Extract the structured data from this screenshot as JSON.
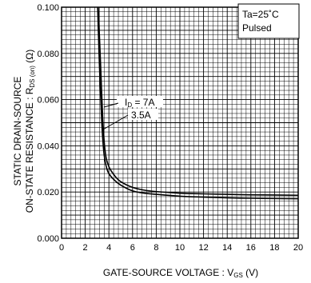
{
  "chart_data": {
    "type": "line",
    "xlabel": "GATE-SOURCE  VOLTAGE : V",
    "xlabel_sub": "GS",
    "xlabel_unit": " (V)",
    "ylabel_line1": "STATIC  DRAIN-SOURCE",
    "ylabel_line2": "ON-STATE  RESISTANCE : R",
    "ylabel_sub": "DS (on)",
    "ylabel_unit": " (Ω)",
    "xlim": [
      0,
      20
    ],
    "ylim": [
      0,
      0.1
    ],
    "xticks": [
      0,
      2,
      4,
      6,
      8,
      10,
      12,
      14,
      16,
      18,
      20
    ],
    "xtick_labels": [
      "0",
      "2",
      "4",
      "6",
      "8",
      "10",
      "12",
      "14",
      "16",
      "18",
      "20"
    ],
    "yticks": [
      0,
      0.02,
      0.04,
      0.06,
      0.08,
      0.1
    ],
    "ytick_labels": [
      "0.000",
      "0.020",
      "0.040",
      "0.060",
      "0.080",
      "0.100"
    ],
    "grid": true,
    "conditions": [
      "Ta=25˚C",
      "Pulsed"
    ],
    "series": [
      {
        "name_prefix": "I",
        "name_sub": "D",
        "name_value": " = 7A",
        "x": [
          3.1,
          3.3,
          3.5,
          3.7,
          4.0,
          4.5,
          5.0,
          6.0,
          7.0,
          8.0,
          10.0,
          12.0,
          14.0,
          16.0,
          18.0,
          20.0
        ],
        "y": [
          0.1,
          0.075,
          0.05,
          0.037,
          0.031,
          0.027,
          0.0245,
          0.022,
          0.0208,
          0.0202,
          0.0195,
          0.0192,
          0.019,
          0.0188,
          0.0187,
          0.0186
        ]
      },
      {
        "name": "3.5A",
        "x": [
          3.05,
          3.2,
          3.4,
          3.6,
          3.9,
          4.4,
          5.0,
          6.0,
          7.0,
          8.0,
          10.0,
          12.0,
          14.0,
          16.0,
          18.0,
          20.0
        ],
        "y": [
          0.1,
          0.075,
          0.05,
          0.036,
          0.029,
          0.0255,
          0.023,
          0.0205,
          0.0195,
          0.019,
          0.0182,
          0.0178,
          0.0175,
          0.0173,
          0.0172,
          0.0171
        ]
      }
    ]
  }
}
